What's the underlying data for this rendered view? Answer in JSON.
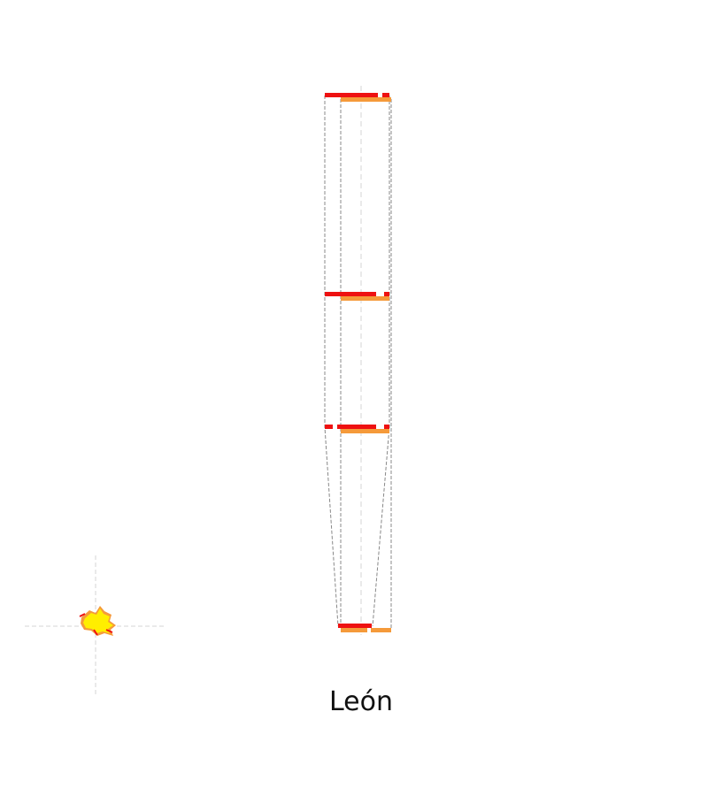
{
  "caption": "León",
  "colors": {
    "red": "#ee1111",
    "orange": "#f59a3a",
    "yellow": "#ffee00",
    "guide": "#d6d6d6",
    "outline": "#888888"
  },
  "icons": {
    "map_glyph": "leon-province-map-icon"
  }
}
